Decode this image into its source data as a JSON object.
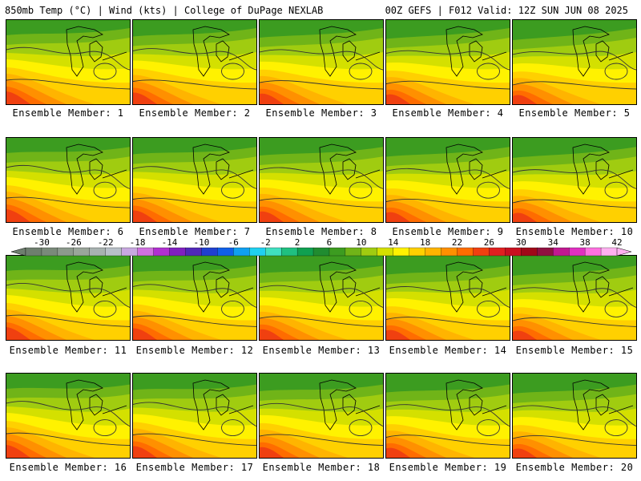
{
  "header": {
    "left": "850mb Temp (°C) | Wind (kts) | College of DuPage NEXLAB",
    "right": "00Z GEFS | F012 Valid: 12Z SUN JUN 08 2025"
  },
  "panels": [
    {
      "label": "Ensemble Member: 1"
    },
    {
      "label": "Ensemble Member: 2"
    },
    {
      "label": "Ensemble Member: 3"
    },
    {
      "label": "Ensemble Member: 4"
    },
    {
      "label": "Ensemble Member: 5"
    },
    {
      "label": "Ensemble Member: 6"
    },
    {
      "label": "Ensemble Member: 7"
    },
    {
      "label": "Ensemble Member: 8"
    },
    {
      "label": "Ensemble Member: 9"
    },
    {
      "label": "Ensemble Member: 10"
    },
    {
      "label": "Ensemble Member: 11"
    },
    {
      "label": "Ensemble Member: 12"
    },
    {
      "label": "Ensemble Member: 13"
    },
    {
      "label": "Ensemble Member: 14"
    },
    {
      "label": "Ensemble Member: 15"
    },
    {
      "label": "Ensemble Member: 16"
    },
    {
      "label": "Ensemble Member: 17"
    },
    {
      "label": "Ensemble Member: 18"
    },
    {
      "label": "Ensemble Member: 19"
    },
    {
      "label": "Ensemble Member: 20"
    }
  ],
  "colorbar": {
    "labels": [
      "-30",
      "-26",
      "-22",
      "-18",
      "-14",
      "-10",
      "-6",
      "-2",
      "2",
      "6",
      "10",
      "14",
      "18",
      "22",
      "26",
      "30",
      "34",
      "38",
      "42"
    ],
    "colors": [
      "#6e7f6e",
      "#7a8a7a",
      "#8c9a8c",
      "#9aa69a",
      "#a8b2b0",
      "#b8c0c8",
      "#c8a8e0",
      "#d070e0",
      "#b030d0",
      "#8020c0",
      "#5028b8",
      "#2040d0",
      "#1060e8",
      "#10a0f0",
      "#20d0f0",
      "#40e0c0",
      "#20c080",
      "#10a050",
      "#208c30",
      "#3c9c20",
      "#70b418",
      "#a0cc10",
      "#d4e000",
      "#fff200",
      "#ffd000",
      "#ffb400",
      "#ff9000",
      "#ff6c00",
      "#f04010",
      "#e02020",
      "#c81020",
      "#a00818",
      "#901040",
      "#c01890",
      "#e030c0",
      "#ff70e0",
      "#ffb0f0"
    ]
  }
}
